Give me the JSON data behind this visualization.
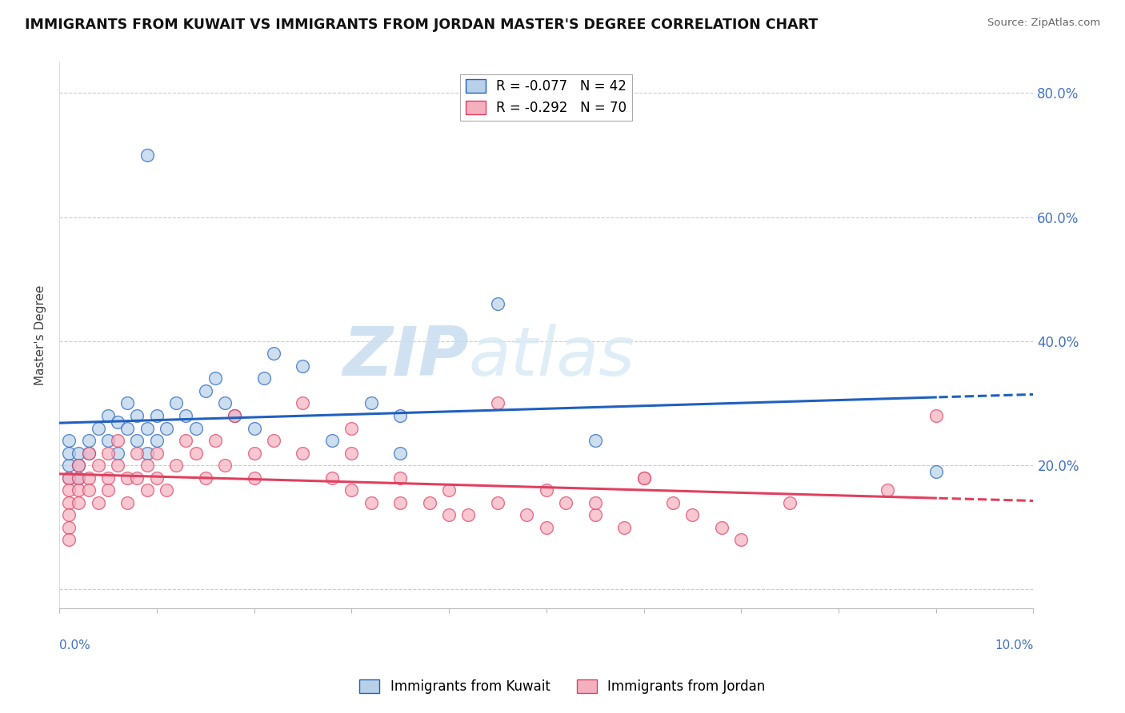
{
  "title": "IMMIGRANTS FROM KUWAIT VS IMMIGRANTS FROM JORDAN MASTER'S DEGREE CORRELATION CHART",
  "source": "Source: ZipAtlas.com",
  "ylabel": "Master's Degree",
  "y_ticks": [
    0.0,
    0.2,
    0.4,
    0.6,
    0.8
  ],
  "y_tick_labels": [
    "",
    "20.0%",
    "40.0%",
    "60.0%",
    "80.0%"
  ],
  "x_min": 0.0,
  "x_max": 0.1,
  "y_min": -0.03,
  "y_max": 0.85,
  "kuwait_R": -0.077,
  "kuwait_N": 42,
  "jordan_R": -0.292,
  "jordan_N": 70,
  "kuwait_color": "#b8d0e8",
  "jordan_color": "#f5b0c0",
  "kuwait_line_color": "#2060c0",
  "jordan_line_color": "#e04060",
  "legend_label_kuwait": "Immigrants from Kuwait",
  "legend_label_jordan": "Immigrants from Jordan",
  "watermark_zip": "ZIP",
  "watermark_atlas": "atlas",
  "title_fontsize": 12.5,
  "scatter_size": 130,
  "kuwait_x": [
    0.001,
    0.001,
    0.001,
    0.001,
    0.002,
    0.002,
    0.002,
    0.003,
    0.003,
    0.004,
    0.005,
    0.005,
    0.006,
    0.006,
    0.007,
    0.007,
    0.008,
    0.008,
    0.009,
    0.009,
    0.01,
    0.01,
    0.011,
    0.012,
    0.013,
    0.014,
    0.015,
    0.016,
    0.017,
    0.018,
    0.02,
    0.021,
    0.022,
    0.025,
    0.028,
    0.032,
    0.035,
    0.009,
    0.045,
    0.055,
    0.09,
    0.035
  ],
  "kuwait_y": [
    0.2,
    0.22,
    0.24,
    0.18,
    0.22,
    0.2,
    0.18,
    0.24,
    0.22,
    0.26,
    0.28,
    0.24,
    0.27,
    0.22,
    0.3,
    0.26,
    0.28,
    0.24,
    0.26,
    0.22,
    0.24,
    0.28,
    0.26,
    0.3,
    0.28,
    0.26,
    0.32,
    0.34,
    0.3,
    0.28,
    0.26,
    0.34,
    0.38,
    0.36,
    0.24,
    0.3,
    0.28,
    0.7,
    0.46,
    0.24,
    0.19,
    0.22
  ],
  "jordan_x": [
    0.001,
    0.001,
    0.001,
    0.001,
    0.001,
    0.001,
    0.002,
    0.002,
    0.002,
    0.002,
    0.003,
    0.003,
    0.003,
    0.004,
    0.004,
    0.005,
    0.005,
    0.005,
    0.006,
    0.006,
    0.007,
    0.007,
    0.008,
    0.008,
    0.009,
    0.009,
    0.01,
    0.01,
    0.011,
    0.012,
    0.013,
    0.014,
    0.015,
    0.016,
    0.017,
    0.018,
    0.02,
    0.02,
    0.022,
    0.025,
    0.028,
    0.03,
    0.03,
    0.032,
    0.035,
    0.038,
    0.04,
    0.042,
    0.045,
    0.048,
    0.05,
    0.052,
    0.055,
    0.058,
    0.06,
    0.063,
    0.065,
    0.068,
    0.07,
    0.075,
    0.025,
    0.03,
    0.035,
    0.04,
    0.045,
    0.05,
    0.055,
    0.06,
    0.085,
    0.09
  ],
  "jordan_y": [
    0.18,
    0.16,
    0.14,
    0.12,
    0.1,
    0.08,
    0.2,
    0.18,
    0.16,
    0.14,
    0.22,
    0.18,
    0.16,
    0.2,
    0.14,
    0.22,
    0.18,
    0.16,
    0.24,
    0.2,
    0.18,
    0.14,
    0.22,
    0.18,
    0.2,
    0.16,
    0.22,
    0.18,
    0.16,
    0.2,
    0.24,
    0.22,
    0.18,
    0.24,
    0.2,
    0.28,
    0.22,
    0.18,
    0.24,
    0.22,
    0.18,
    0.16,
    0.22,
    0.14,
    0.18,
    0.14,
    0.16,
    0.12,
    0.14,
    0.12,
    0.1,
    0.14,
    0.12,
    0.1,
    0.18,
    0.14,
    0.12,
    0.1,
    0.08,
    0.14,
    0.3,
    0.26,
    0.14,
    0.12,
    0.3,
    0.16,
    0.14,
    0.18,
    0.16,
    0.28
  ]
}
